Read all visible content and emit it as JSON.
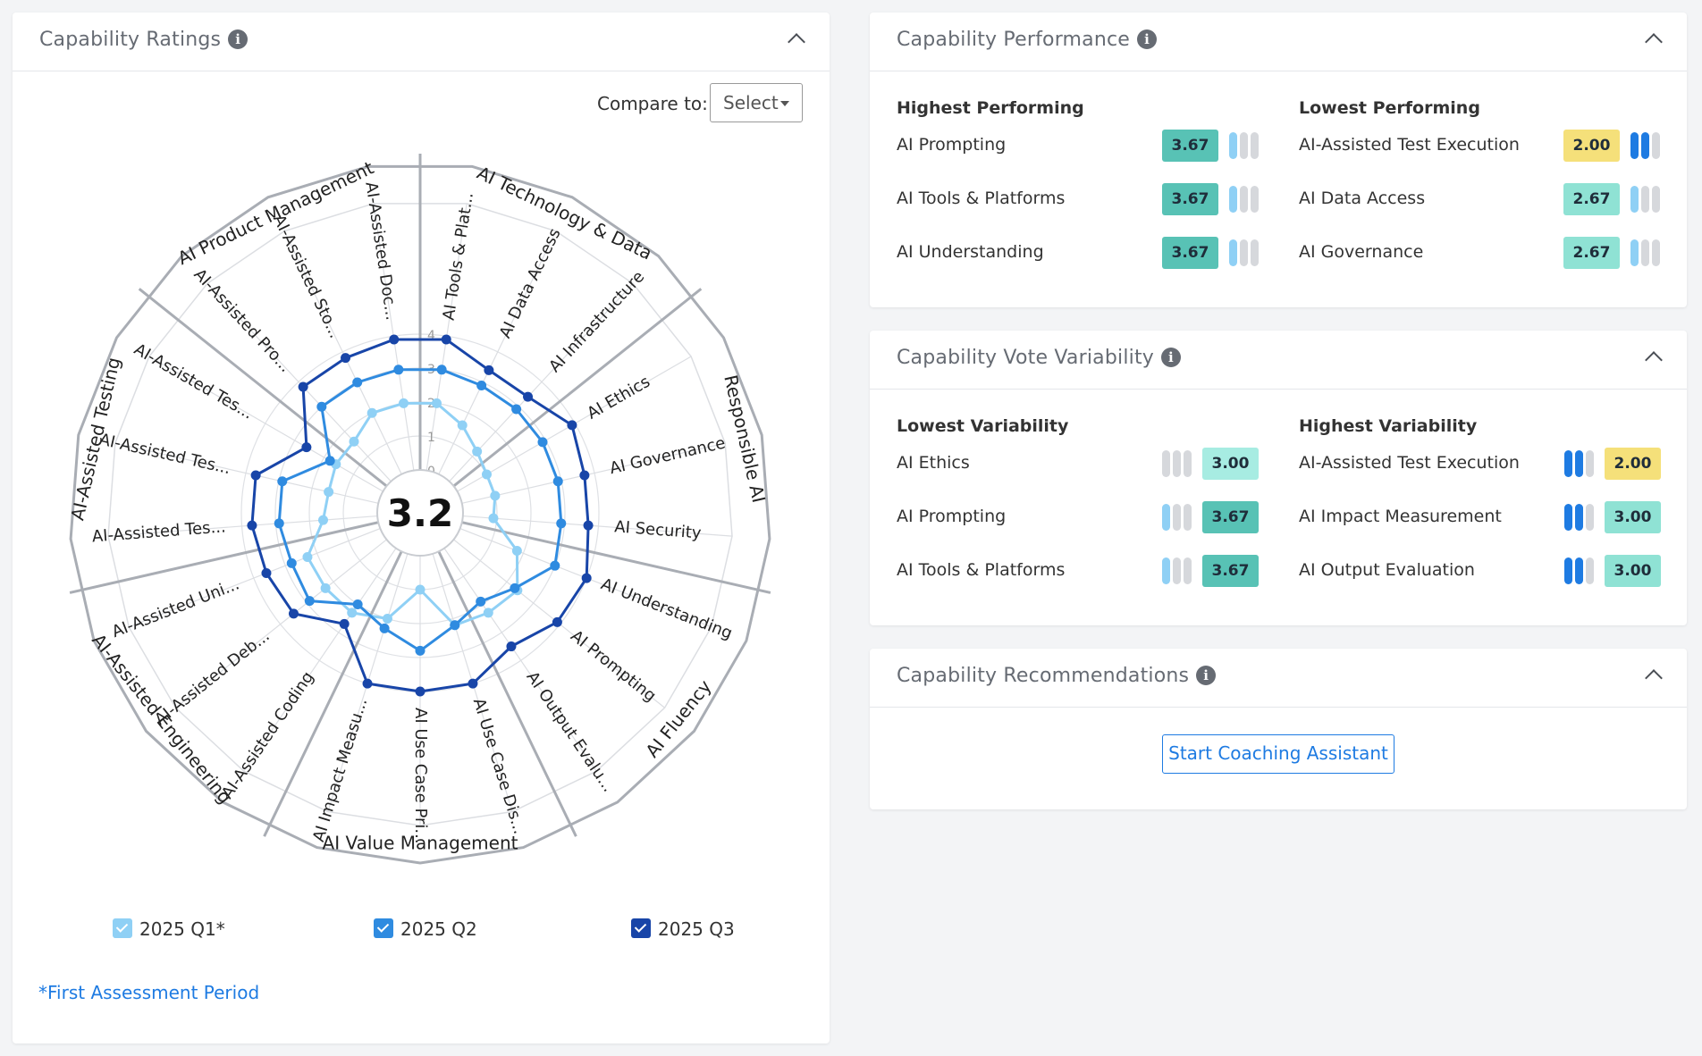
{
  "ratings": {
    "title": "Capability Ratings",
    "info_icon": "info-icon",
    "compare_label": "Compare to:",
    "compare_select": "Select",
    "center_score": "3.2",
    "legend": [
      {
        "label": "2025 Q1*",
        "color": "#8fd0f5"
      },
      {
        "label": "2025 Q2",
        "color": "#2f8be0"
      },
      {
        "label": "2025 Q3",
        "color": "#1845a8"
      }
    ],
    "footnote": "*First Assessment Period"
  },
  "chart_data": {
    "type": "radar",
    "rlim": [
      0,
      4
    ],
    "radial_ticks": [
      "0",
      "1",
      "2",
      "3",
      "4"
    ],
    "center_value": "3.2",
    "group_labels": [
      "AI Technology & Data",
      "Responsible AI",
      "AI Fluency",
      "AI Value Management",
      "AI-Assisted Engineering",
      "AI-Assisted Testing",
      "AI Product Management"
    ],
    "categories": [
      "AI Tools & Plat...",
      "AI Data Access",
      "AI Infrastructure",
      "AI Ethics",
      "AI Governance",
      "AI Security",
      "AI Understanding",
      "AI Prompting",
      "AI Output Evalu...",
      "AI Use Case Dis...",
      "AI Use Case Pri...",
      "AI Impact Measu...",
      "AI-Assisted Coding",
      "AI-Assisted Deb...",
      "AI-Assisted Uni...",
      "AI-Assisted Tes...",
      "AI-Assisted Tes...",
      "AI-Assisted Tes...",
      "AI-Assisted Pro...",
      "AI-Assisted Sto...",
      "AI-Assisted Doc..."
    ],
    "series": [
      {
        "name": "2025 Q1*",
        "color": "#8fd0f5",
        "values": [
          2.0,
          1.6,
          1.2,
          1.0,
          1.0,
          0.9,
          1.8,
          2.4,
          2.3,
          2.2,
          1.0,
          2.0,
          2.3,
          2.3,
          2.3,
          1.6,
          1.5,
          1.6,
          1.6,
          2.0,
          2.0
        ]
      },
      {
        "name": "2025 Q2",
        "color": "#2f8be0",
        "values": [
          3.0,
          2.9,
          2.9,
          2.9,
          2.9,
          2.9,
          3.0,
          2.3,
          1.9,
          2.2,
          2.8,
          2.3,
          2.0,
          2.9,
          2.8,
          2.9,
          2.9,
          1.8,
          3.0,
          3.0,
          3.0
        ]
      },
      {
        "name": "2025 Q3",
        "color": "#1845a8",
        "values": [
          3.9,
          3.4,
          3.4,
          3.9,
          3.7,
          3.7,
          4.0,
          3.9,
          3.5,
          4.0,
          4.0,
          4.0,
          2.7,
          3.5,
          3.6,
          3.7,
          3.7,
          2.6,
          3.8,
          3.8,
          3.9
        ]
      }
    ]
  },
  "performance": {
    "title": "Capability Performance",
    "info_icon": "info-icon",
    "highest_title": "Highest Performing",
    "lowest_title": "Lowest Performing",
    "highest": [
      {
        "name": "AI Prompting",
        "score": "3.67",
        "color": "#58c2b5",
        "bars": 1,
        "bar_color": "#8fd0f5"
      },
      {
        "name": "AI Tools & Platforms",
        "score": "3.67",
        "color": "#58c2b5",
        "bars": 1,
        "bar_color": "#8fd0f5"
      },
      {
        "name": "AI Understanding",
        "score": "3.67",
        "color": "#58c2b5",
        "bars": 1,
        "bar_color": "#8fd0f5"
      }
    ],
    "lowest": [
      {
        "name": "AI-Assisted Test Execution",
        "score": "2.00",
        "color": "#f5e07a",
        "bars": 2,
        "bar_color": "#1e7be2"
      },
      {
        "name": "AI Data Access",
        "score": "2.67",
        "color": "#8fe2d4",
        "bars": 1,
        "bar_color": "#8fd0f5"
      },
      {
        "name": "AI Governance",
        "score": "2.67",
        "color": "#8fe2d4",
        "bars": 1,
        "bar_color": "#8fd0f5"
      }
    ]
  },
  "variability": {
    "title": "Capability Vote Variability",
    "info_icon": "info-icon",
    "lowest_title": "Lowest Variability",
    "highest_title": "Highest Variability",
    "lowest": [
      {
        "name": "AI Ethics",
        "score": "3.00",
        "color": "#a7ece2",
        "bars": 0,
        "bar_color": "#d6d8dc"
      },
      {
        "name": "AI Prompting",
        "score": "3.67",
        "color": "#58c2b5",
        "bars": 1,
        "bar_color": "#8fd0f5"
      },
      {
        "name": "AI Tools & Platforms",
        "score": "3.67",
        "color": "#58c2b5",
        "bars": 1,
        "bar_color": "#8fd0f5"
      }
    ],
    "highest": [
      {
        "name": "AI-Assisted Test Execution",
        "score": "2.00",
        "color": "#f5e07a",
        "bars": 2,
        "bar_color": "#1e7be2"
      },
      {
        "name": "AI Impact Measurement",
        "score": "3.00",
        "color": "#8fe2d4",
        "bars": 2,
        "bar_color": "#1e7be2"
      },
      {
        "name": "AI Output Evaluation",
        "score": "3.00",
        "color": "#8fe2d4",
        "bars": 2,
        "bar_color": "#1e7be2"
      }
    ]
  },
  "recommendations": {
    "title": "Capability Recommendations",
    "info_icon": "info-icon",
    "button_label": "Start Coaching Assistant"
  }
}
